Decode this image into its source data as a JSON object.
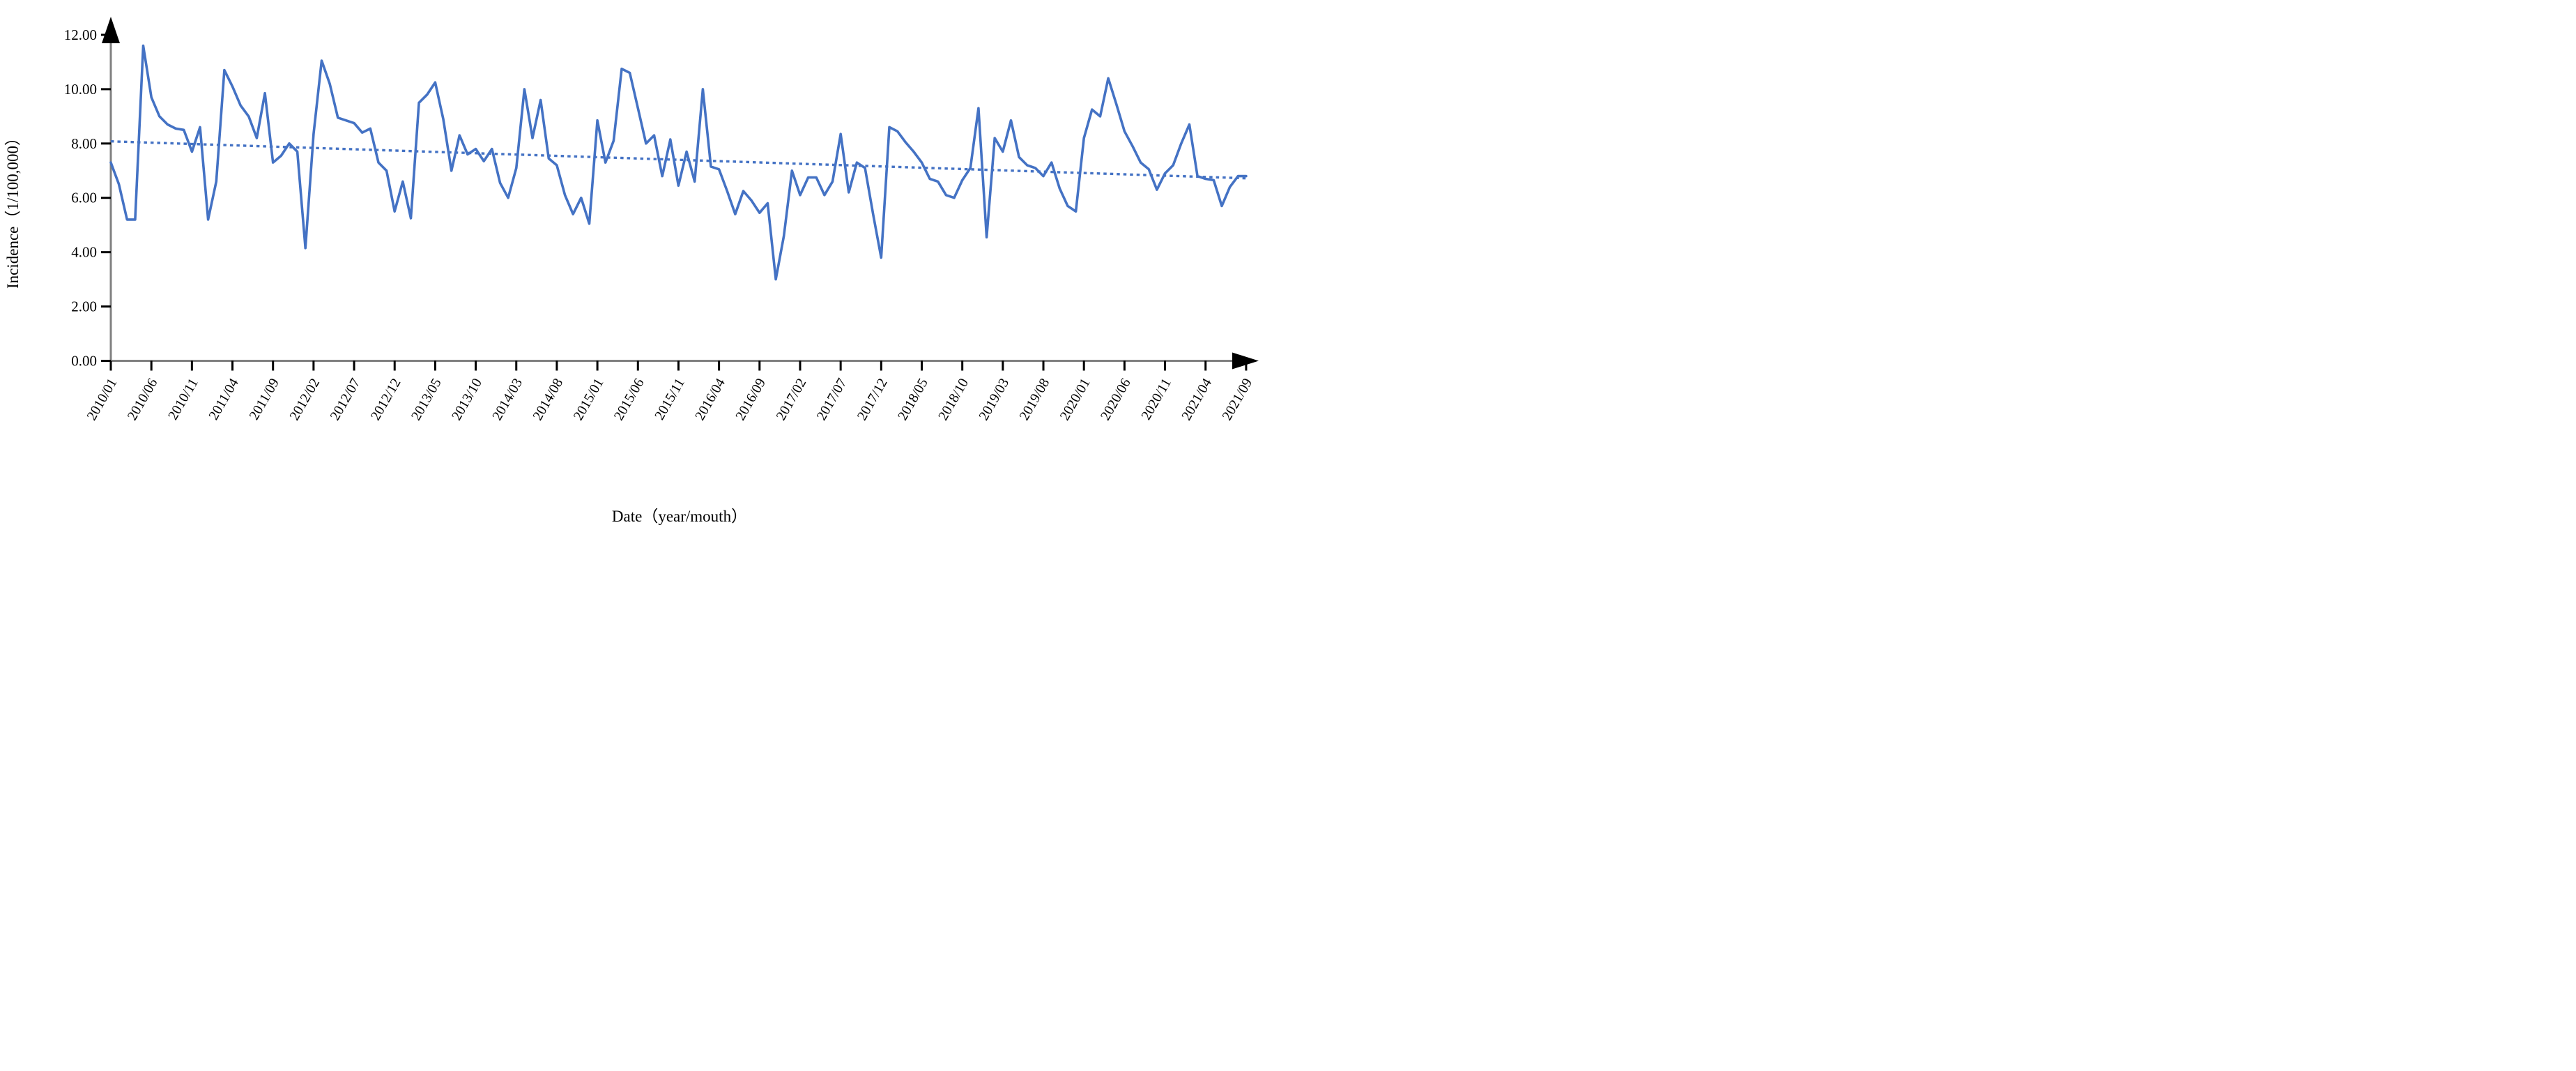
{
  "figure": {
    "background": "#ffffff",
    "y_axis_title": "Incidence（1/100,000）",
    "x_axis_title": "Date（year/mouth）"
  },
  "chart_data": {
    "type": "line",
    "title": "",
    "xlabel": "Date（year/mouth）",
    "ylabel": "Incidence（1/100,000）",
    "ylim": [
      0,
      12
    ],
    "y_tick_step": 2,
    "y_tick_labels": [
      "0.00",
      "2.00",
      "4.00",
      "6.00",
      "8.00",
      "10.00",
      "12.00"
    ],
    "x_start": "2010/01",
    "x_end": "2021/09",
    "months_count": 141,
    "x_tick_every": 5,
    "x_tick_labels": [
      "2010/01",
      "2010/06",
      "2010/11",
      "2011/04",
      "2011/09",
      "2012/02",
      "2012/07",
      "2012/12",
      "2013/05",
      "2013/10",
      "2014/03",
      "2014/08",
      "2015/01",
      "2015/06",
      "2015/11",
      "2016/04",
      "2016/09",
      "2017/02",
      "2017/07",
      "2017/12",
      "2018/05",
      "2018/10",
      "2019/03",
      "2019/08",
      "2020/01",
      "2020/06",
      "2020/11",
      "2021/04",
      "2021/09"
    ],
    "grid": false,
    "legend_position": "none",
    "colors": {
      "line": "#4472C4",
      "trend": "#4472C4",
      "axis": "#808080",
      "tick": "#000000",
      "text": "#000000"
    },
    "series": [
      {
        "name": "monthly-incidence",
        "style": "solid",
        "values": [
          7.3,
          6.5,
          5.2,
          5.2,
          11.6,
          9.7,
          9.0,
          8.7,
          8.55,
          8.5,
          7.7,
          8.6,
          5.2,
          6.6,
          10.7,
          10.1,
          9.4,
          9.0,
          8.2,
          9.85,
          7.3,
          7.55,
          8.0,
          7.7,
          4.15,
          8.35,
          11.05,
          10.2,
          8.95,
          8.85,
          8.75,
          8.4,
          8.55,
          7.3,
          7.0,
          5.5,
          6.6,
          5.25,
          9.5,
          9.8,
          10.25,
          8.9,
          7.0,
          8.3,
          7.6,
          7.8,
          7.35,
          7.8,
          6.55,
          6.0,
          7.1,
          10.0,
          8.2,
          9.6,
          7.45,
          7.2,
          6.1,
          5.4,
          6.0,
          5.05,
          8.85,
          7.3,
          8.1,
          10.75,
          10.6,
          9.3,
          8.0,
          8.3,
          6.8,
          8.15,
          6.45,
          7.7,
          6.6,
          10.0,
          7.15,
          7.05,
          6.25,
          5.4,
          6.25,
          5.9,
          5.45,
          5.8,
          3.0,
          4.6,
          7.0,
          6.1,
          6.75,
          6.75,
          6.1,
          6.6,
          8.35,
          6.2,
          7.3,
          7.1,
          5.4,
          3.8,
          8.6,
          8.45,
          8.05,
          7.7,
          7.3,
          6.7,
          6.6,
          6.1,
          6.0,
          6.65,
          7.1,
          9.3,
          4.55,
          8.2,
          7.7,
          8.85,
          7.5,
          7.2,
          7.1,
          6.8,
          7.3,
          6.35,
          5.7,
          5.5,
          8.2,
          9.25,
          9.0,
          10.4,
          9.45,
          8.45,
          7.9,
          7.3,
          7.05,
          6.3,
          6.9,
          7.2,
          8.0,
          8.7,
          6.8,
          6.7,
          6.65,
          5.7,
          6.4,
          6.8,
          6.8
        ]
      },
      {
        "name": "linear-trend",
        "style": "dotted",
        "trend_start": 8.08,
        "trend_end": 6.72
      }
    ]
  }
}
